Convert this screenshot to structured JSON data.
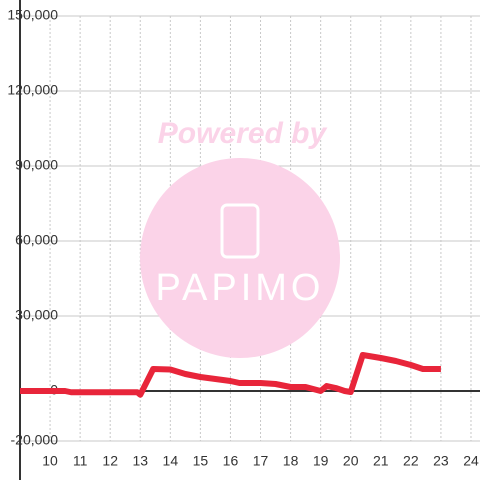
{
  "chart_data": {
    "type": "line",
    "x": [
      9,
      9.5,
      10,
      10.5,
      10.7,
      11,
      12,
      12.9,
      13,
      13.43,
      14,
      14.5,
      15,
      15.5,
      16,
      16.3,
      17,
      17.5,
      18,
      18.5,
      19,
      19.2,
      19.5,
      19.8,
      20,
      20.4,
      21,
      21.5,
      22,
      22.4,
      23
    ],
    "values": [
      0,
      0,
      0,
      0,
      -500,
      -500,
      -500,
      -500,
      -1500,
      8800,
      8600,
      6800,
      5600,
      4800,
      4000,
      3200,
      3200,
      2800,
      1600,
      1600,
      0,
      2000,
      1200,
      0,
      -400,
      14400,
      13200,
      12000,
      10400,
      8800,
      8800
    ],
    "color": "#e8253a",
    "xlim": [
      9,
      24.3
    ],
    "ylim": [
      -20000,
      150000
    ],
    "xticks": [
      10,
      11,
      12,
      13,
      14,
      15,
      16,
      17,
      18,
      19,
      20,
      21,
      22,
      23,
      24
    ],
    "yticks": [
      {
        "value": -20000,
        "label": "-20,000"
      },
      0,
      {
        "value": 30000,
        "label": "30,000"
      },
      {
        "value": 60000,
        "label": "60,000"
      },
      {
        "value": 90000,
        "label": "90,000"
      },
      {
        "value": 120000,
        "label": "120,000"
      },
      {
        "value": 150000,
        "label": "150,000"
      }
    ],
    "grid": true
  },
  "watermark": {
    "line1": "Powered by",
    "line2": "PAPIMO"
  }
}
